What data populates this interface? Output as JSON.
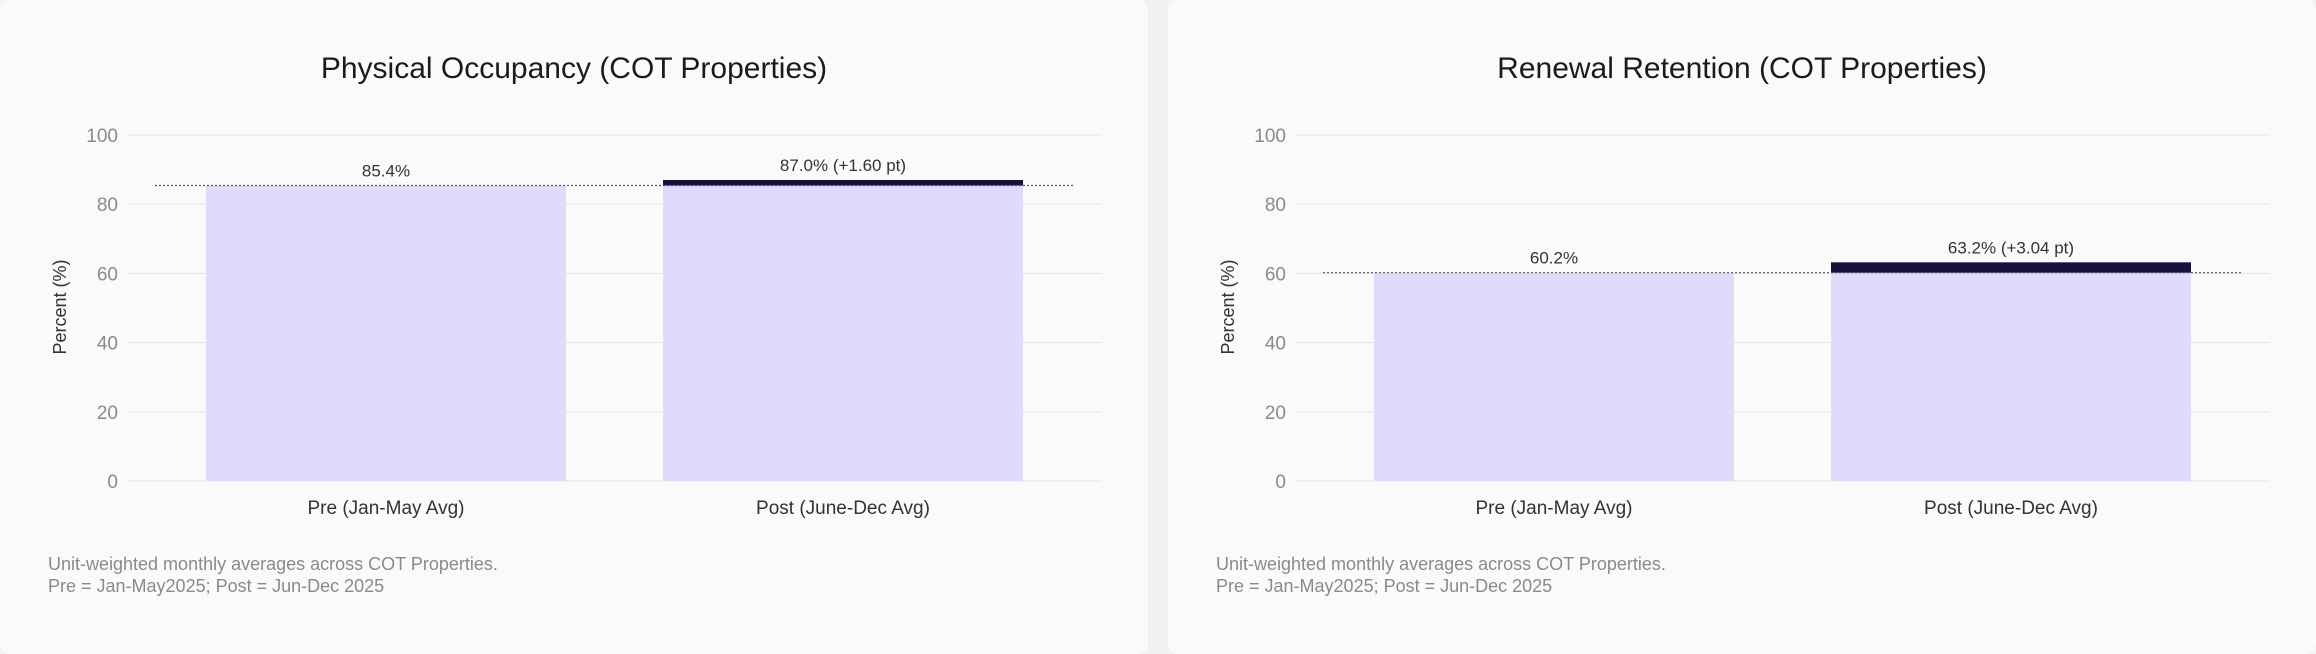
{
  "chart_data": [
    {
      "type": "bar",
      "title": "Physical Occupancy (COT Properties)",
      "ylabel": "Percent (%)",
      "xlabel": "",
      "ylim": [
        0,
        100
      ],
      "yticks": [
        0,
        20,
        40,
        60,
        80,
        100
      ],
      "grid": true,
      "categories": [
        "Pre (Jan-May Avg)",
        "Post (June-Dec Avg)"
      ],
      "values": [
        85.4,
        87.0
      ],
      "baseline": 85.4,
      "data_labels": [
        "85.4%",
        "87.0% (+1.60 pt)"
      ],
      "notes": [
        "Unit-weighted monthly averages across COT Properties.",
        "Pre = Jan-May2025; Post = Jun-Dec 2025"
      ],
      "colors": {
        "bar": "#dedbfd",
        "increase": "#1a0f3d",
        "baseline": "#555555"
      }
    },
    {
      "type": "bar",
      "title": "Renewal Retention (COT Properties)",
      "ylabel": "Percent (%)",
      "xlabel": "",
      "ylim": [
        0,
        100
      ],
      "yticks": [
        0,
        20,
        40,
        60,
        80,
        100
      ],
      "grid": true,
      "categories": [
        "Pre (Jan-May Avg)",
        "Post (June-Dec Avg)"
      ],
      "values": [
        60.2,
        63.2
      ],
      "baseline": 60.2,
      "data_labels": [
        "60.2%",
        "63.2% (+3.04 pt)"
      ],
      "notes": [
        "Unit-weighted monthly averages across COT Properties.",
        "Pre = Jan-May2025; Post = Jun-Dec 2025"
      ],
      "colors": {
        "bar": "#dedbfd",
        "increase": "#1a0f3d",
        "baseline": "#555555"
      }
    }
  ]
}
